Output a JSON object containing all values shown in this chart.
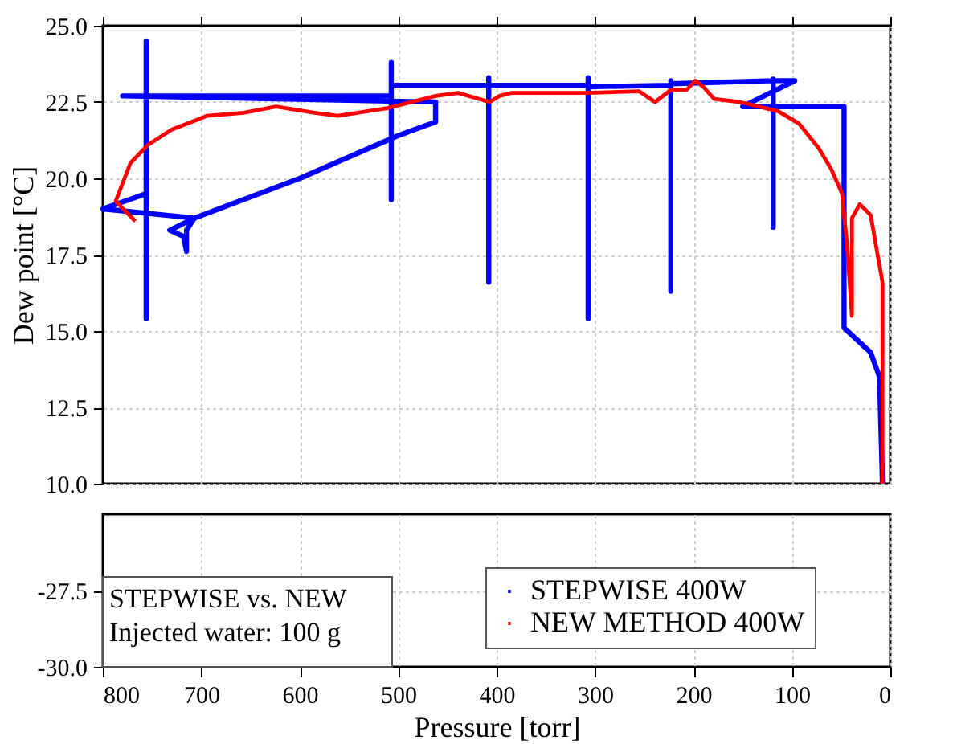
{
  "chart_data": [
    {
      "type": "line",
      "ylabel": "Dew point [°C]",
      "xlim": [
        800,
        0
      ],
      "xticks": [
        800,
        700,
        600,
        500,
        400,
        300,
        200,
        100,
        0
      ],
      "ylim": [
        10,
        25
      ],
      "yticks": [
        {
          "value": 10,
          "label": "10.0"
        },
        {
          "value": 12.5,
          "label": "12.5"
        },
        {
          "value": 15,
          "label": "15.0"
        },
        {
          "value": 17.5,
          "label": "17.5"
        },
        {
          "value": 20,
          "label": "20.0"
        },
        {
          "value": 22.5,
          "label": "22.5"
        },
        {
          "value": 25,
          "label": "25.0"
        }
      ],
      "tick_labels": "y",
      "grid": true,
      "legend": "bottom right",
      "line_style": "solid",
      "marker": "none",
      "series": [
        {
          "name": "STEPWISE 400W",
          "color": "#0000ff",
          "x": [
            756,
            800,
            707,
            732,
            718,
            715,
            715,
            707,
            600,
            500,
            462,
            462,
            780,
            756,
            756,
            756,
            756,
            507,
            507,
            507,
            507,
            408,
            408,
            408,
            408,
            307,
            307,
            307,
            307,
            223,
            223,
            223,
            223,
            119,
            119,
            119,
            119,
            97,
            150,
            47,
            47,
            20,
            11,
            8
          ],
          "values": [
            19.5,
            19.0,
            18.7,
            18.3,
            18.1,
            17.6,
            18.3,
            18.7,
            20.0,
            21.4,
            21.85,
            22.5,
            22.7,
            22.7,
            24.5,
            15.4,
            22.7,
            22.7,
            23.8,
            19.3,
            23.05,
            23.05,
            23.3,
            16.6,
            23.05,
            23.05,
            23.3,
            15.4,
            23.0,
            23.05,
            23.2,
            16.3,
            23.1,
            23.2,
            23.25,
            18.4,
            23.2,
            23.2,
            22.35,
            22.35,
            15.1,
            14.3,
            13.5,
            10.0
          ]
        },
        {
          "name": "NEW METHOD 400W",
          "color": "#ff0000",
          "x": [
            767,
            787,
            772,
            754,
            730,
            694,
            657,
            624,
            585,
            561,
            511,
            462,
            439,
            407,
            397,
            385,
            309,
            255,
            239,
            223,
            207,
            198,
            190,
            179,
            153,
            114,
            93,
            73,
            60,
            49,
            44,
            39,
            39,
            31,
            20,
            8,
            8
          ],
          "values": [
            18.6,
            19.25,
            20.5,
            21.1,
            21.6,
            22.05,
            22.15,
            22.35,
            22.15,
            22.05,
            22.3,
            22.7,
            22.8,
            22.5,
            22.7,
            22.8,
            22.8,
            22.85,
            22.5,
            22.9,
            22.9,
            23.2,
            23.0,
            22.6,
            22.5,
            22.2,
            21.8,
            21.0,
            20.3,
            19.5,
            17.85,
            15.5,
            18.7,
            19.15,
            18.8,
            16.6,
            10.0
          ]
        }
      ]
    },
    {
      "type": "line",
      "xlabel": "Pressure [torr]",
      "xlim": [
        800,
        0
      ],
      "xticks": [
        800,
        700,
        600,
        500,
        400,
        300,
        200,
        100,
        0
      ],
      "ylim": [
        -30,
        -25
      ],
      "yticks": [
        {
          "value": -30,
          "label": "-30.0"
        },
        {
          "value": -27.5,
          "label": "-27.5"
        }
      ],
      "grid": true,
      "annotations": [
        "STEPWISE vs. NEW",
        "Injected water: 100 g"
      ]
    }
  ]
}
